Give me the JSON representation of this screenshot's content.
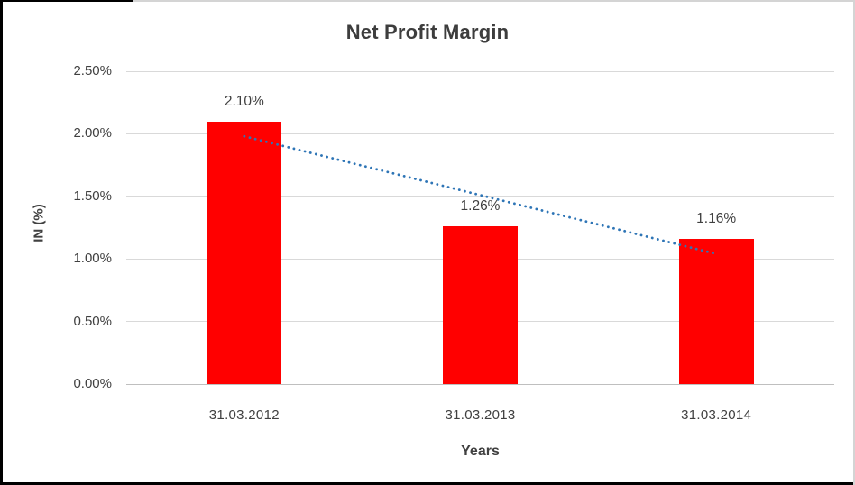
{
  "chart_data": {
    "type": "bar",
    "title": "Net Profit Margin",
    "categories": [
      "31.03.2012",
      "31.03.2013",
      "31.03.2014"
    ],
    "values": [
      2.1,
      1.26,
      1.16
    ],
    "data_labels": [
      "2.10%",
      "1.26%",
      "1.16%"
    ],
    "xlabel": "Years",
    "ylabel": "IN (%)",
    "ylim": [
      0,
      2.5
    ],
    "ytick_values": [
      0,
      0.5,
      1.0,
      1.5,
      2.0,
      2.5
    ],
    "ytick_labels": [
      "0.00%",
      "0.50%",
      "1.00%",
      "1.50%",
      "2.00%",
      "2.50%"
    ],
    "grid": true,
    "legend": "none",
    "bar_color": "#FF0000",
    "trendline": {
      "type": "linear",
      "style": "dotted",
      "color": "#2E75B6",
      "start_value": 1.98,
      "end_value": 1.04
    }
  },
  "colors": {
    "background": "#FFFFFF",
    "gridline": "#D9D9D9",
    "axis_line": "#BFBFBF",
    "tick_text": "#404040",
    "title_text": "#3D3D3D",
    "frame_dark": "#000000",
    "frame_light": "#D4D4D4"
  }
}
